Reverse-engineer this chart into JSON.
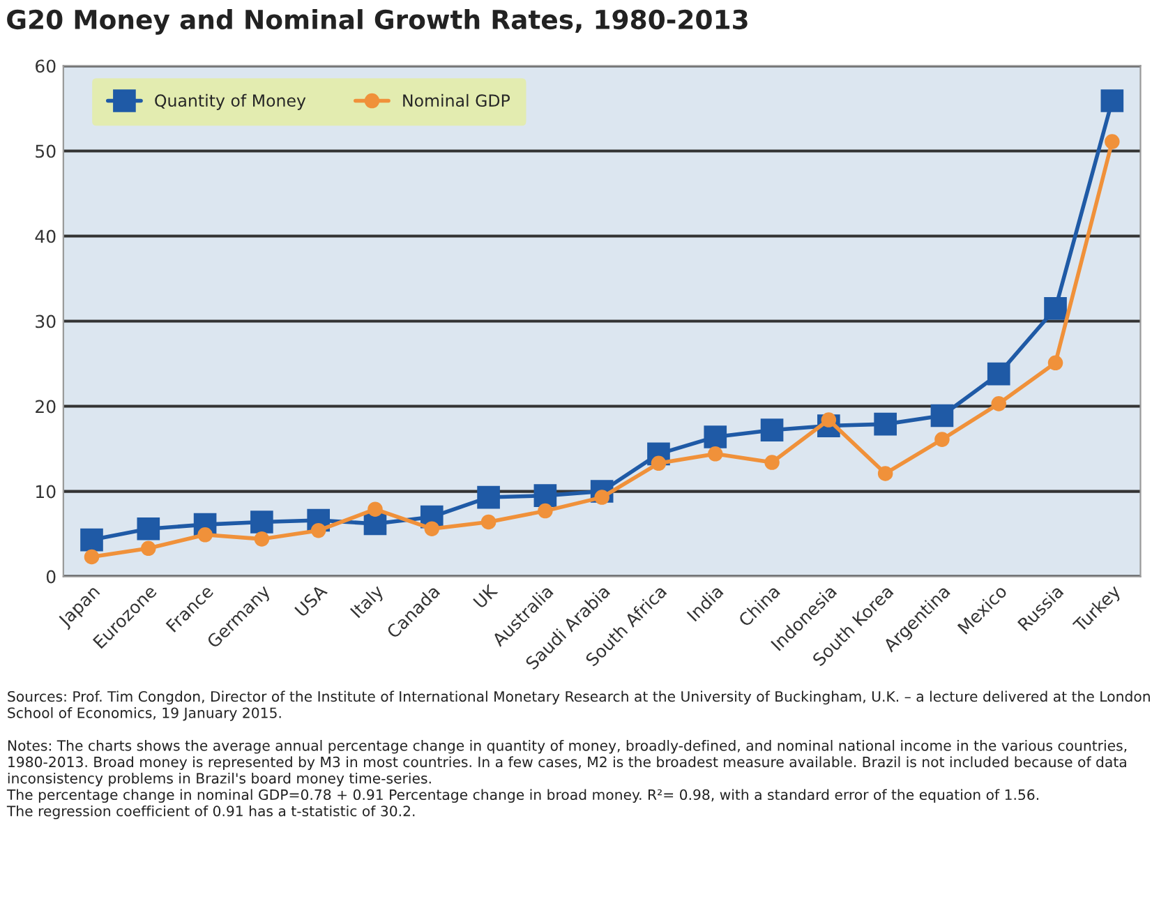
{
  "chart_data": {
    "type": "line",
    "title": "G20 Money and Nominal Growth Rates, 1980-2013",
    "categories": [
      "Japan",
      "Eurozone",
      "France",
      "Germany",
      "USA",
      "Italy",
      "Canada",
      "UK",
      "Australia",
      "Saudi Arabia",
      "South Africa",
      "India",
      "China",
      "Indonesia",
      "South Korea",
      "Argentina",
      "Mexico",
      "Russia",
      "Turkey"
    ],
    "series": [
      {
        "name": "Quantity of Money",
        "color": "#1f5aa6",
        "marker": "square",
        "values": [
          4.3,
          5.6,
          6.1,
          6.4,
          6.6,
          6.2,
          7.0,
          9.3,
          9.5,
          10.0,
          14.4,
          16.4,
          17.2,
          17.7,
          17.9,
          18.9,
          23.8,
          31.5,
          55.9
        ]
      },
      {
        "name": "Nominal GDP",
        "color": "#f0913a",
        "marker": "circle",
        "values": [
          2.3,
          3.3,
          4.9,
          4.4,
          5.4,
          7.9,
          5.6,
          6.4,
          7.7,
          9.3,
          13.3,
          14.4,
          13.4,
          18.4,
          12.1,
          16.1,
          20.3,
          25.1,
          51.1
        ]
      }
    ],
    "ylim": [
      0,
      60
    ],
    "yticks": [
      0,
      10,
      20,
      30,
      40,
      50,
      60
    ],
    "grid": "y",
    "legend": "top left",
    "line_style": "solid",
    "annotations": [
      "Sources: Prof. Tim Congdon, Director of the Institute of International Monetary Research at the University of Buckingham, U.K. – a lecture delivered at the London School of Economics, 19 January 2015.",
      "Notes: The charts shows the average annual percentage change in quantity of money, broadly-defined, and nominal national income in the various countries, 1980-2013. Broad money is represented by M3 in most countries. In a few cases, M2 is the broadest measure available. Brazil is not included because of data inconsistency problems in Brazil's board money time-series.",
      "The percentage change in nominal GDP=0.78 + 0.91 Percentage change in broad money. R²= 0.98, with a standard error of the equation of 1.56.",
      "The regression coefficient of 0.91 has a t-statistic of 30.2."
    ]
  }
}
